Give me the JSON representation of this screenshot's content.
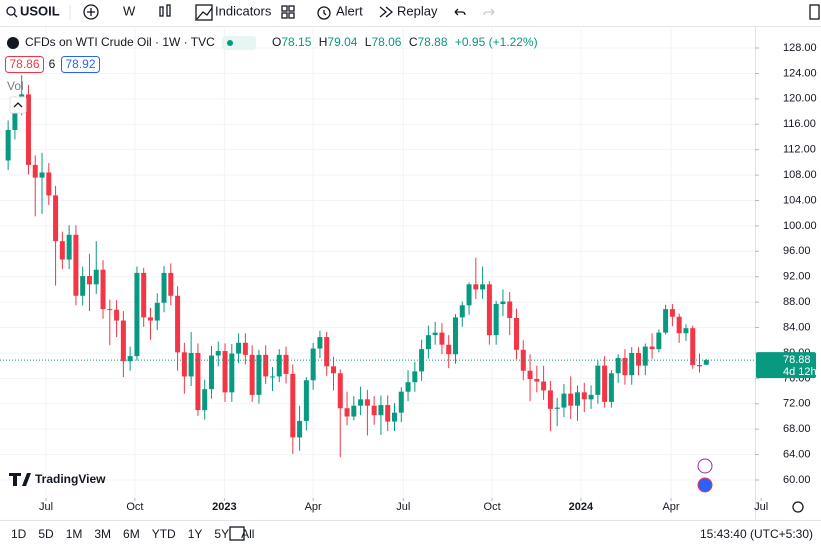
{
  "toolbar": {
    "symbol": "USOIL",
    "interval": "W",
    "items": [
      "Indicators",
      "Alert",
      "Replay"
    ]
  },
  "chart_data": {
    "type": "candlestick",
    "title": "CFDs on WTI Crude Oil · 1W · TVC",
    "ohlc_labels": [
      "O",
      "H",
      "L",
      "C"
    ],
    "change": "+0.95 (+1.22%)",
    "bid": 78.86,
    "spread": 6,
    "ask": 78.92,
    "volume_label": "Vol",
    "countdown": "4d 12h",
    "up_color": "#089981",
    "down_color": "#f23645",
    "open": [
      110.3,
      115.1,
      118.9,
      120.7,
      109.6,
      107.6,
      108.4,
      104.8,
      97.6,
      94.7,
      98.6,
      89.0,
      92.1,
      90.8,
      93.1,
      86.9,
      86.8,
      85.1,
      78.7,
      79.5,
      92.6,
      85.6,
      85.1,
      87.9,
      92.6,
      89.0,
      80.1,
      76.3,
      80.0,
      71.0,
      74.3,
      79.6,
      80.3,
      73.8,
      79.9,
      81.6,
      79.7,
      73.4,
      79.7,
      76.3,
      76.3,
      79.7,
      76.7,
      66.7,
      69.3,
      75.7,
      80.7,
      82.5,
      77.9,
      76.8,
      71.3,
      70.0,
      71.7,
      72.7,
      71.7,
      70.2,
      71.8,
      69.2,
      70.6,
      73.9,
      75.4,
      77.1,
      80.6,
      82.8,
      83.2,
      81.3,
      79.8,
      85.6,
      87.5,
      90.8,
      90.0,
      90.8,
      82.8,
      87.7,
      88.1,
      85.5,
      80.5,
      77.2,
      75.9,
      75.5,
      74.1,
      71.2,
      71.4,
      73.6,
      71.7,
      73.8,
      72.7,
      73.4,
      78.0,
      72.3,
      76.8,
      79.2,
      76.5,
      80.0,
      78.0,
      81.0,
      80.6,
      83.2,
      86.9,
      85.7,
      83.1,
      83.9,
      78.1,
      78.15
    ],
    "high": [
      116.6,
      120.4,
      123.7,
      122.2,
      111.1,
      111.5,
      109.9,
      106.3,
      99.1,
      100.1,
      100.1,
      93.6,
      95.6,
      97.6,
      94.6,
      88.4,
      88.3,
      86.6,
      81.0,
      93.6,
      93.4,
      87.1,
      89.4,
      93.7,
      94.1,
      90.5,
      81.6,
      83.3,
      81.5,
      75.8,
      81.1,
      81.8,
      81.5,
      81.4,
      83.1,
      83.1,
      81.2,
      80.5,
      81.2,
      77.8,
      80.6,
      81.0,
      78.2,
      71.7,
      76.2,
      81.6,
      83.5,
      83.3,
      79.4,
      77.4,
      73.9,
      73.2,
      74.7,
      74.2,
      73.2,
      73.3,
      73.3,
      72.1,
      74.6,
      77.3,
      78.6,
      82.1,
      84.3,
      84.9,
      84.7,
      82.8,
      86.1,
      88.1,
      91.1,
      95.0,
      93.6,
      91.3,
      88.2,
      90.0,
      89.6,
      87.0,
      82.0,
      79.8,
      78.0,
      78.0,
      75.6,
      72.9,
      75.1,
      76.3,
      74.9,
      75.3,
      74.9,
      78.8,
      79.5,
      77.3,
      79.8,
      80.6,
      80.9,
      80.9,
      81.5,
      83.1,
      83.7,
      87.6,
      87.7,
      86.2,
      84.5,
      84.3,
      79.9,
      79.04
    ],
    "low": [
      108.8,
      113.6,
      117.4,
      108.1,
      101.5,
      101.9,
      103.3,
      90.6,
      93.2,
      93.2,
      87.5,
      87.5,
      86.6,
      89.3,
      85.4,
      81.2,
      82.5,
      76.2,
      77.2,
      78.8,
      84.1,
      82.1,
      83.6,
      86.4,
      87.5,
      77.2,
      73.6,
      74.8,
      70.1,
      69.5,
      72.8,
      77.9,
      72.3,
      72.3,
      78.4,
      78.2,
      72.3,
      72.0,
      75.1,
      74.0,
      75.4,
      75.2,
      64.1,
      64.6,
      67.8,
      74.2,
      79.2,
      76.4,
      74.1,
      63.6,
      68.6,
      69.4,
      70.2,
      67.0,
      68.7,
      67.1,
      67.7,
      67.7,
      69.1,
      72.4,
      73.9,
      75.6,
      79.1,
      81.3,
      79.8,
      77.6,
      78.3,
      84.1,
      86.0,
      88.5,
      88.5,
      81.3,
      81.3,
      85.8,
      82.8,
      79.0,
      75.7,
      72.4,
      73.8,
      72.6,
      67.7,
      68.5,
      69.9,
      69.6,
      69.3,
      70.7,
      71.2,
      72.0,
      71.4,
      71.4,
      75.3,
      75.0,
      75.0,
      76.5,
      76.5,
      79.1,
      80.1,
      82.9,
      84.2,
      81.6,
      81.9,
      77.5,
      76.9,
      78.06
    ],
    "close": [
      115.1,
      118.9,
      120.7,
      109.6,
      107.6,
      108.4,
      104.8,
      97.6,
      94.7,
      98.6,
      89.0,
      92.1,
      90.8,
      93.1,
      86.9,
      86.8,
      85.1,
      78.7,
      79.5,
      92.6,
      85.6,
      85.1,
      87.9,
      92.6,
      89.0,
      80.1,
      76.3,
      80.0,
      71.0,
      74.3,
      79.6,
      80.3,
      73.8,
      79.9,
      81.6,
      79.7,
      73.4,
      79.7,
      76.3,
      76.3,
      79.7,
      76.7,
      66.7,
      69.3,
      75.7,
      80.7,
      82.5,
      77.9,
      76.8,
      71.3,
      70.0,
      71.7,
      72.7,
      71.7,
      70.2,
      71.8,
      69.2,
      70.6,
      73.9,
      75.4,
      77.1,
      80.6,
      82.8,
      83.2,
      81.3,
      79.8,
      85.6,
      87.5,
      90.8,
      90.0,
      90.8,
      82.8,
      87.7,
      88.1,
      85.5,
      80.5,
      77.2,
      75.9,
      75.5,
      74.1,
      71.2,
      71.4,
      73.6,
      71.7,
      73.8,
      72.7,
      73.4,
      78.0,
      72.3,
      76.8,
      79.2,
      76.5,
      80.0,
      78.0,
      81.0,
      80.6,
      83.2,
      86.9,
      85.7,
      83.1,
      83.9,
      78.1,
      77.9,
      78.88
    ],
    "xlim": [
      -1.2,
      112.4
    ],
    "xticks": [
      {
        "value": 5.6,
        "label": "Jul"
      },
      {
        "value": 18.7,
        "label": "Oct"
      },
      {
        "value": 31.9,
        "label": "2023"
      },
      {
        "value": 45.0,
        "label": "Apr"
      },
      {
        "value": 58.3,
        "label": "Jul"
      },
      {
        "value": 71.4,
        "label": "Oct"
      },
      {
        "value": 84.5,
        "label": "2024"
      },
      {
        "value": 97.8,
        "label": "Apr"
      },
      {
        "value": 111.1,
        "label": "Jul"
      }
    ],
    "ylim": [
      57.64,
      131.15
    ],
    "yticks": [
      {
        "value": 60,
        "label": "60.00"
      },
      {
        "value": 64,
        "label": "64.00"
      },
      {
        "value": 68,
        "label": "68.00"
      },
      {
        "value": 72,
        "label": "72.00"
      },
      {
        "value": 76,
        "label": "76.00"
      },
      {
        "value": 80,
        "label": "80.00"
      },
      {
        "value": 84,
        "label": "84.00"
      },
      {
        "value": 88,
        "label": "88.00"
      },
      {
        "value": 92,
        "label": "92.00"
      },
      {
        "value": 96,
        "label": "96.00"
      },
      {
        "value": 100,
        "label": "100.00"
      },
      {
        "value": 104,
        "label": "104.00"
      },
      {
        "value": 108,
        "label": "108.00"
      },
      {
        "value": 112,
        "label": "112.00"
      },
      {
        "value": 116,
        "label": "116.00"
      },
      {
        "value": 120,
        "label": "120.00"
      },
      {
        "value": 124,
        "label": "124.00"
      },
      {
        "value": 128,
        "label": "128.00"
      }
    ]
  },
  "brand": "TradingView",
  "footer": {
    "ranges": [
      "1D",
      "5D",
      "1M",
      "3M",
      "6M",
      "YTD",
      "1Y",
      "5Y",
      "All"
    ],
    "clock": "15:43:40 (UTC+5:30)"
  }
}
